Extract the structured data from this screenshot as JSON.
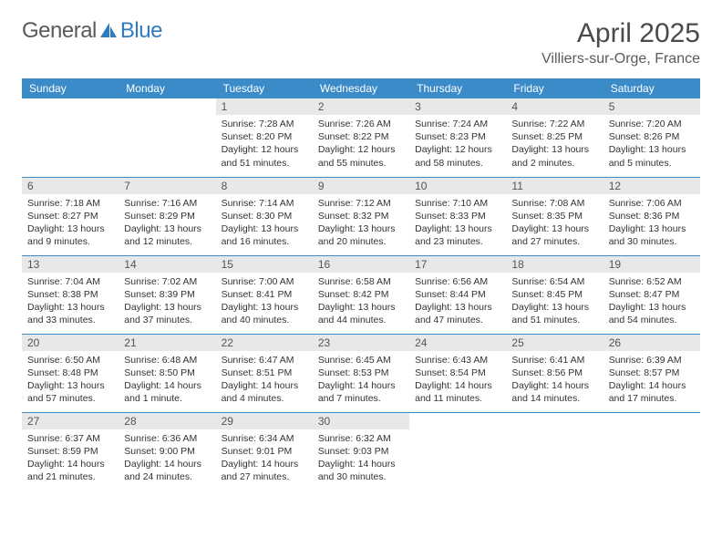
{
  "brand": {
    "part1": "General",
    "part2": "Blue"
  },
  "title": "April 2025",
  "location": "Villiers-sur-Orge, France",
  "colors": {
    "header_bg": "#3b8bc9",
    "header_text": "#ffffff",
    "daynum_bg": "#e8e8e8",
    "border": "#3b8bc9",
    "logo_gray": "#5a5a5a",
    "logo_blue": "#2f7bbf"
  },
  "weekdays": [
    "Sunday",
    "Monday",
    "Tuesday",
    "Wednesday",
    "Thursday",
    "Friday",
    "Saturday"
  ],
  "leading_blanks": 2,
  "trailing_blanks": 3,
  "days": [
    {
      "n": 1,
      "sunrise": "7:28 AM",
      "sunset": "8:20 PM",
      "daylight": "12 hours and 51 minutes."
    },
    {
      "n": 2,
      "sunrise": "7:26 AM",
      "sunset": "8:22 PM",
      "daylight": "12 hours and 55 minutes."
    },
    {
      "n": 3,
      "sunrise": "7:24 AM",
      "sunset": "8:23 PM",
      "daylight": "12 hours and 58 minutes."
    },
    {
      "n": 4,
      "sunrise": "7:22 AM",
      "sunset": "8:25 PM",
      "daylight": "13 hours and 2 minutes."
    },
    {
      "n": 5,
      "sunrise": "7:20 AM",
      "sunset": "8:26 PM",
      "daylight": "13 hours and 5 minutes."
    },
    {
      "n": 6,
      "sunrise": "7:18 AM",
      "sunset": "8:27 PM",
      "daylight": "13 hours and 9 minutes."
    },
    {
      "n": 7,
      "sunrise": "7:16 AM",
      "sunset": "8:29 PM",
      "daylight": "13 hours and 12 minutes."
    },
    {
      "n": 8,
      "sunrise": "7:14 AM",
      "sunset": "8:30 PM",
      "daylight": "13 hours and 16 minutes."
    },
    {
      "n": 9,
      "sunrise": "7:12 AM",
      "sunset": "8:32 PM",
      "daylight": "13 hours and 20 minutes."
    },
    {
      "n": 10,
      "sunrise": "7:10 AM",
      "sunset": "8:33 PM",
      "daylight": "13 hours and 23 minutes."
    },
    {
      "n": 11,
      "sunrise": "7:08 AM",
      "sunset": "8:35 PM",
      "daylight": "13 hours and 27 minutes."
    },
    {
      "n": 12,
      "sunrise": "7:06 AM",
      "sunset": "8:36 PM",
      "daylight": "13 hours and 30 minutes."
    },
    {
      "n": 13,
      "sunrise": "7:04 AM",
      "sunset": "8:38 PM",
      "daylight": "13 hours and 33 minutes."
    },
    {
      "n": 14,
      "sunrise": "7:02 AM",
      "sunset": "8:39 PM",
      "daylight": "13 hours and 37 minutes."
    },
    {
      "n": 15,
      "sunrise": "7:00 AM",
      "sunset": "8:41 PM",
      "daylight": "13 hours and 40 minutes."
    },
    {
      "n": 16,
      "sunrise": "6:58 AM",
      "sunset": "8:42 PM",
      "daylight": "13 hours and 44 minutes."
    },
    {
      "n": 17,
      "sunrise": "6:56 AM",
      "sunset": "8:44 PM",
      "daylight": "13 hours and 47 minutes."
    },
    {
      "n": 18,
      "sunrise": "6:54 AM",
      "sunset": "8:45 PM",
      "daylight": "13 hours and 51 minutes."
    },
    {
      "n": 19,
      "sunrise": "6:52 AM",
      "sunset": "8:47 PM",
      "daylight": "13 hours and 54 minutes."
    },
    {
      "n": 20,
      "sunrise": "6:50 AM",
      "sunset": "8:48 PM",
      "daylight": "13 hours and 57 minutes."
    },
    {
      "n": 21,
      "sunrise": "6:48 AM",
      "sunset": "8:50 PM",
      "daylight": "14 hours and 1 minute."
    },
    {
      "n": 22,
      "sunrise": "6:47 AM",
      "sunset": "8:51 PM",
      "daylight": "14 hours and 4 minutes."
    },
    {
      "n": 23,
      "sunrise": "6:45 AM",
      "sunset": "8:53 PM",
      "daylight": "14 hours and 7 minutes."
    },
    {
      "n": 24,
      "sunrise": "6:43 AM",
      "sunset": "8:54 PM",
      "daylight": "14 hours and 11 minutes."
    },
    {
      "n": 25,
      "sunrise": "6:41 AM",
      "sunset": "8:56 PM",
      "daylight": "14 hours and 14 minutes."
    },
    {
      "n": 26,
      "sunrise": "6:39 AM",
      "sunset": "8:57 PM",
      "daylight": "14 hours and 17 minutes."
    },
    {
      "n": 27,
      "sunrise": "6:37 AM",
      "sunset": "8:59 PM",
      "daylight": "14 hours and 21 minutes."
    },
    {
      "n": 28,
      "sunrise": "6:36 AM",
      "sunset": "9:00 PM",
      "daylight": "14 hours and 24 minutes."
    },
    {
      "n": 29,
      "sunrise": "6:34 AM",
      "sunset": "9:01 PM",
      "daylight": "14 hours and 27 minutes."
    },
    {
      "n": 30,
      "sunrise": "6:32 AM",
      "sunset": "9:03 PM",
      "daylight": "14 hours and 30 minutes."
    }
  ],
  "labels": {
    "sunrise": "Sunrise: ",
    "sunset": "Sunset: ",
    "daylight": "Daylight: "
  }
}
